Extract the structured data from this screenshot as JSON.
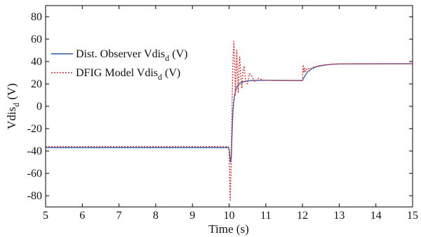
{
  "chart_data": {
    "type": "line",
    "xlabel": "Time (s)",
    "ylabel": {
      "base": "Vdis",
      "sub": "d",
      "tail": " (V)"
    },
    "xlim": [
      5,
      15
    ],
    "ylim": [
      -90,
      90
    ],
    "xticks": [
      5,
      6,
      7,
      8,
      9,
      10,
      11,
      12,
      13,
      14,
      15
    ],
    "yticks": [
      -80,
      -60,
      -40,
      -20,
      0,
      20,
      40,
      60,
      80
    ],
    "grid": false,
    "legend_position": "top-left",
    "series": [
      {
        "name": {
          "base": "Dist. Observer Vdis",
          "sub": "d",
          "tail": " (V)"
        },
        "color": "#3355aa",
        "style": "solid",
        "points": [
          [
            5.0,
            -37
          ],
          [
            9.98,
            -37
          ],
          [
            10.0,
            -38
          ],
          [
            10.02,
            -44
          ],
          [
            10.04,
            -50
          ],
          [
            10.06,
            -46
          ],
          [
            10.08,
            -25
          ],
          [
            10.1,
            -8
          ],
          [
            10.12,
            2
          ],
          [
            10.15,
            10
          ],
          [
            10.18,
            14
          ],
          [
            10.22,
            18
          ],
          [
            10.28,
            20
          ],
          [
            10.35,
            21.5
          ],
          [
            10.45,
            22.5
          ],
          [
            10.6,
            23
          ],
          [
            11.0,
            23.2
          ],
          [
            12.0,
            23
          ],
          [
            12.03,
            25
          ],
          [
            12.08,
            28
          ],
          [
            12.15,
            31
          ],
          [
            12.25,
            33.5
          ],
          [
            12.4,
            35.5
          ],
          [
            12.6,
            36.8
          ],
          [
            12.8,
            37.5
          ],
          [
            13.0,
            37.8
          ],
          [
            15.0,
            38
          ]
        ]
      },
      {
        "name": {
          "base": "DFIG Model Vdis",
          "sub": "d",
          "tail": " (V)"
        },
        "color": "#dd2222",
        "style": "dotted",
        "points": [
          [
            5.0,
            -36
          ],
          [
            9.98,
            -36
          ],
          [
            10.0,
            -40
          ],
          [
            10.02,
            -70
          ],
          [
            10.03,
            -84
          ],
          [
            10.05,
            -62
          ],
          [
            10.07,
            -20
          ],
          [
            10.09,
            15
          ],
          [
            10.11,
            45
          ],
          [
            10.13,
            58
          ],
          [
            10.15,
            42
          ],
          [
            10.17,
            10
          ],
          [
            10.19,
            32
          ],
          [
            10.21,
            50
          ],
          [
            10.23,
            28
          ],
          [
            10.25,
            12
          ],
          [
            10.27,
            36
          ],
          [
            10.29,
            44
          ],
          [
            10.32,
            26
          ],
          [
            10.35,
            16
          ],
          [
            10.38,
            32
          ],
          [
            10.41,
            36
          ],
          [
            10.45,
            22
          ],
          [
            10.5,
            20
          ],
          [
            10.55,
            29
          ],
          [
            10.6,
            28
          ],
          [
            10.7,
            22
          ],
          [
            10.8,
            25
          ],
          [
            10.9,
            23.5
          ],
          [
            11.0,
            23.3
          ],
          [
            11.2,
            23
          ],
          [
            12.0,
            23
          ],
          [
            12.01,
            33
          ],
          [
            12.02,
            37
          ],
          [
            12.04,
            30
          ],
          [
            12.06,
            34
          ],
          [
            12.09,
            31
          ],
          [
            12.13,
            34
          ],
          [
            12.2,
            33
          ],
          [
            12.3,
            35
          ],
          [
            12.45,
            36.2
          ],
          [
            12.6,
            37
          ],
          [
            12.8,
            37.6
          ],
          [
            13.0,
            37.9
          ],
          [
            15.0,
            38
          ]
        ]
      }
    ]
  }
}
